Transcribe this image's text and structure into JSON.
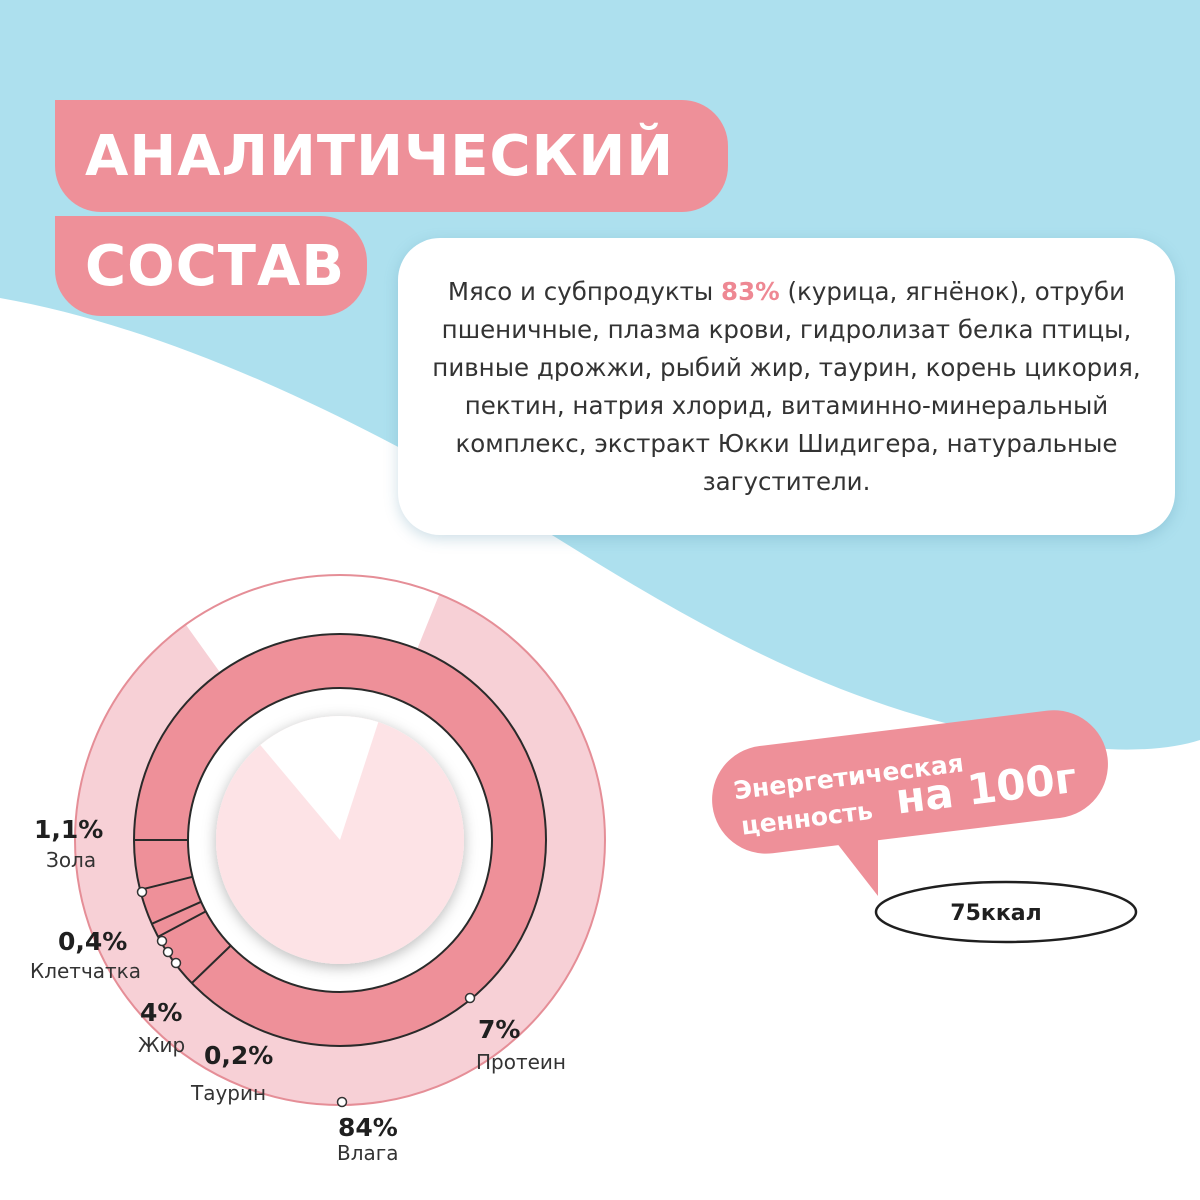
{
  "colors": {
    "background_blue": "#ade0ee",
    "accent_pink": "#ee9099",
    "light_pink": "#f7d0d6",
    "white": "#ffffff"
  },
  "title": {
    "line1": "АНАЛИТИЧЕСКИЙ",
    "line2": "СОСТАВ"
  },
  "composition": {
    "prefix": "Мясо и субпродукты",
    "highlight": "83%",
    "rest": "(курица, ягнёнок), отруби пшеничные, плазма крови, гидролизат белка птицы, пивные дрожжи, рыбий жир, таурин, корень цикория, пектин, натрия хлорид, витаминно-минеральный комплекс, экстракт Юкки Шидигера, натуральные загустители."
  },
  "chart_data": {
    "type": "pie",
    "segments": [
      {
        "label": "Влага",
        "value_label": "84%",
        "value": 84
      },
      {
        "label": "Протеин",
        "value_label": "7%",
        "value": 7
      },
      {
        "label": "Жир",
        "value_label": "4%",
        "value": 4
      },
      {
        "label": "Зола",
        "value_label": "1,1%",
        "value": 1.1
      },
      {
        "label": "Клетчатка",
        "value_label": "0,4%",
        "value": 0.4
      },
      {
        "label": "Таурин",
        "value_label": "0,2%",
        "value": 0.2
      }
    ]
  },
  "energy": {
    "label_line1": "Энергетическая",
    "label_line2": "ценность",
    "per_amount": "на 100г",
    "value": "75ккал"
  }
}
